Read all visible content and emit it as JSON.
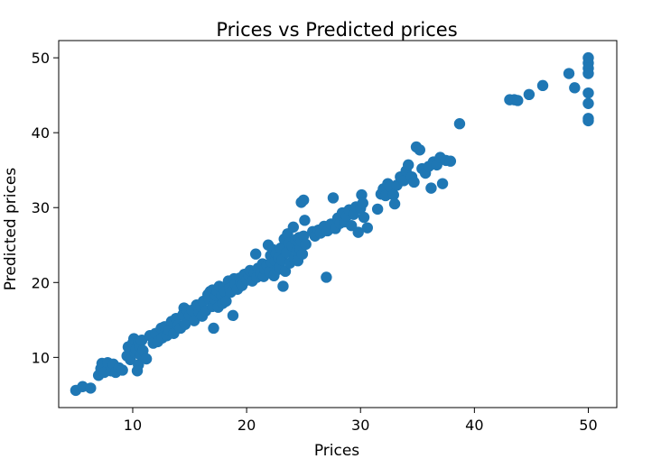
{
  "chart_data": {
    "type": "scatter",
    "title": "Prices vs Predicted prices",
    "xlabel": "Prices",
    "ylabel": "Predicted prices",
    "xlim": [
      3.5,
      52.5
    ],
    "ylim": [
      3.3,
      52.3
    ],
    "xticks": [
      10,
      20,
      30,
      40,
      50
    ],
    "yticks": [
      10,
      20,
      30,
      40,
      50
    ],
    "grid": false,
    "marker_color": "#1f77b4",
    "series": [
      {
        "points": [
          [
            5.0,
            5.6
          ],
          [
            5.6,
            6.1
          ],
          [
            6.3,
            5.9
          ],
          [
            7.0,
            7.6
          ],
          [
            7.2,
            8.5
          ],
          [
            7.3,
            9.2
          ],
          [
            7.5,
            8.0
          ],
          [
            7.8,
            9.3
          ],
          [
            8.1,
            8.2
          ],
          [
            8.3,
            9.1
          ],
          [
            8.5,
            8.0
          ],
          [
            8.8,
            8.6
          ],
          [
            9.1,
            8.3
          ],
          [
            9.5,
            10.2
          ],
          [
            9.6,
            11.4
          ],
          [
            9.8,
            9.7
          ],
          [
            10.0,
            11.9
          ],
          [
            10.1,
            12.5
          ],
          [
            10.2,
            10.6
          ],
          [
            10.3,
            11.1
          ],
          [
            10.5,
            9.0
          ],
          [
            10.5,
            12.0
          ],
          [
            10.6,
            11.5
          ],
          [
            10.7,
            10.3
          ],
          [
            10.8,
            12.3
          ],
          [
            10.9,
            10.9
          ],
          [
            10.4,
            8.2
          ],
          [
            11.2,
            9.8
          ],
          [
            11.5,
            12.9
          ],
          [
            11.8,
            11.9
          ],
          [
            12.0,
            13.2
          ],
          [
            12.2,
            12.1
          ],
          [
            12.5,
            13.9
          ],
          [
            12.6,
            12.6
          ],
          [
            12.8,
            14.1
          ],
          [
            13.0,
            12.9
          ],
          [
            13.2,
            13.6
          ],
          [
            13.4,
            14.8
          ],
          [
            13.6,
            13.2
          ],
          [
            13.8,
            15.2
          ],
          [
            14.0,
            14.3
          ],
          [
            14.2,
            13.9
          ],
          [
            14.4,
            15.7
          ],
          [
            14.5,
            16.6
          ],
          [
            14.6,
            14.4
          ],
          [
            14.8,
            16.3
          ],
          [
            15.0,
            15.6
          ],
          [
            15.2,
            16.3
          ],
          [
            15.4,
            14.9
          ],
          [
            15.6,
            17.0
          ],
          [
            15.8,
            16.1
          ],
          [
            16.0,
            16.8
          ],
          [
            16.1,
            15.5
          ],
          [
            16.2,
            17.5
          ],
          [
            16.4,
            16.2
          ],
          [
            16.6,
            18.4
          ],
          [
            16.7,
            17.8
          ],
          [
            16.8,
            18.8
          ],
          [
            17.0,
            19.0
          ],
          [
            17.0,
            16.8
          ],
          [
            17.1,
            13.9
          ],
          [
            17.2,
            17.8
          ],
          [
            17.3,
            18.3
          ],
          [
            17.4,
            18.9
          ],
          [
            17.5,
            16.7
          ],
          [
            17.6,
            19.5
          ],
          [
            17.8,
            18.2
          ],
          [
            17.9,
            17.2
          ],
          [
            18.0,
            19.3
          ],
          [
            18.1,
            18.8
          ],
          [
            18.2,
            17.5
          ],
          [
            18.4,
            20.2
          ],
          [
            18.5,
            19.2
          ],
          [
            18.6,
            18.7
          ],
          [
            18.8,
            15.6
          ],
          [
            18.9,
            20.5
          ],
          [
            19.0,
            19.8
          ],
          [
            19.2,
            19.1
          ],
          [
            19.4,
            20.6
          ],
          [
            19.5,
            20.0
          ],
          [
            19.6,
            19.6
          ],
          [
            19.8,
            21.1
          ],
          [
            20.0,
            20.3
          ],
          [
            20.2,
            20.9
          ],
          [
            20.3,
            21.6
          ],
          [
            20.5,
            20.2
          ],
          [
            20.7,
            21.3
          ],
          [
            20.8,
            23.8
          ],
          [
            20.9,
            20.7
          ],
          [
            21.0,
            21.9
          ],
          [
            21.2,
            21.2
          ],
          [
            21.4,
            22.5
          ],
          [
            21.5,
            20.8
          ],
          [
            21.6,
            21.8
          ],
          [
            21.8,
            22.3
          ],
          [
            21.9,
            25.0
          ],
          [
            22.0,
            21.4
          ],
          [
            22.1,
            23.6
          ],
          [
            22.2,
            22.7
          ],
          [
            22.3,
            24.4
          ],
          [
            22.4,
            20.9
          ],
          [
            22.5,
            22.9
          ],
          [
            22.6,
            23.9
          ],
          [
            22.7,
            21.7
          ],
          [
            22.8,
            23.3
          ],
          [
            22.9,
            22.0
          ],
          [
            23.0,
            24.6
          ],
          [
            23.1,
            23.0
          ],
          [
            23.2,
            19.5
          ],
          [
            23.3,
            25.8
          ],
          [
            23.4,
            21.5
          ],
          [
            23.5,
            24.0
          ],
          [
            23.6,
            26.5
          ],
          [
            23.7,
            25.3
          ],
          [
            23.8,
            22.6
          ],
          [
            24.0,
            24.9
          ],
          [
            24.1,
            27.4
          ],
          [
            24.2,
            23.2
          ],
          [
            24.3,
            25.7
          ],
          [
            24.4,
            24.2
          ],
          [
            24.5,
            22.9
          ],
          [
            24.6,
            26.0
          ],
          [
            24.7,
            24.5
          ],
          [
            24.8,
            25.5
          ],
          [
            24.9,
            23.8
          ],
          [
            25.0,
            26.2
          ],
          [
            25.1,
            28.3
          ],
          [
            24.8,
            30.7
          ],
          [
            25.0,
            31.0
          ],
          [
            25.2,
            25.1
          ],
          [
            25.8,
            26.8
          ],
          [
            26.0,
            26.2
          ],
          [
            26.3,
            27.0
          ],
          [
            26.5,
            26.6
          ],
          [
            26.8,
            27.5
          ],
          [
            27.0,
            20.7
          ],
          [
            27.1,
            26.9
          ],
          [
            27.4,
            27.8
          ],
          [
            27.6,
            31.3
          ],
          [
            27.8,
            27.2
          ],
          [
            28.0,
            28.6
          ],
          [
            28.2,
            27.9
          ],
          [
            28.4,
            29.3
          ],
          [
            28.6,
            28.1
          ],
          [
            28.8,
            28.9
          ],
          [
            29.0,
            29.7
          ],
          [
            29.2,
            27.6
          ],
          [
            29.4,
            29.1
          ],
          [
            29.6,
            30.1
          ],
          [
            29.8,
            26.7
          ],
          [
            30.0,
            29.9
          ],
          [
            30.1,
            31.7
          ],
          [
            30.2,
            30.6
          ],
          [
            30.3,
            28.7
          ],
          [
            30.6,
            27.3
          ],
          [
            31.5,
            29.8
          ],
          [
            31.8,
            31.8
          ],
          [
            32.0,
            32.5
          ],
          [
            32.2,
            31.6
          ],
          [
            32.4,
            33.2
          ],
          [
            32.6,
            32.8
          ],
          [
            32.9,
            31.7
          ],
          [
            33.0,
            30.5
          ],
          [
            33.2,
            33.0
          ],
          [
            33.5,
            34.1
          ],
          [
            33.8,
            33.6
          ],
          [
            34.0,
            34.9
          ],
          [
            34.2,
            35.7
          ],
          [
            34.5,
            34.1
          ],
          [
            34.7,
            33.4
          ],
          [
            34.9,
            38.1
          ],
          [
            35.2,
            37.7
          ],
          [
            35.4,
            35.2
          ],
          [
            35.7,
            34.6
          ],
          [
            36.0,
            35.5
          ],
          [
            36.2,
            32.6
          ],
          [
            36.4,
            36.1
          ],
          [
            36.7,
            35.7
          ],
          [
            37.0,
            36.7
          ],
          [
            37.2,
            33.2
          ],
          [
            37.5,
            36.3
          ],
          [
            37.9,
            36.2
          ],
          [
            38.7,
            41.2
          ],
          [
            43.1,
            44.4
          ],
          [
            43.5,
            44.4
          ],
          [
            43.8,
            44.3
          ],
          [
            44.8,
            45.1
          ],
          [
            46.0,
            46.3
          ],
          [
            48.3,
            47.9
          ],
          [
            48.8,
            46.0
          ],
          [
            50.0,
            50.0
          ],
          [
            50.0,
            49.3
          ],
          [
            50.0,
            48.6
          ],
          [
            50.0,
            47.9
          ],
          [
            50.0,
            45.3
          ],
          [
            50.0,
            43.9
          ],
          [
            50.0,
            41.9
          ],
          [
            50.0,
            41.6
          ]
        ]
      }
    ]
  }
}
